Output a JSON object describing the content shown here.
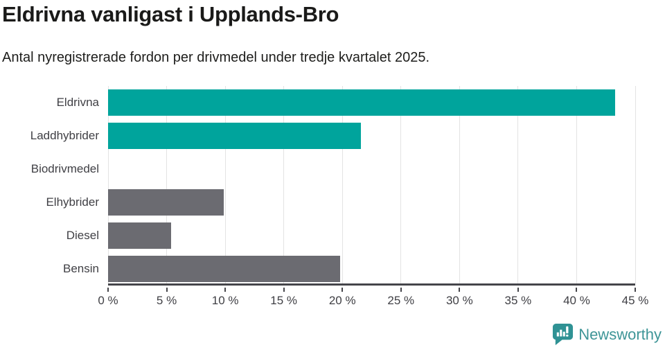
{
  "header": {
    "title": "Eldrivna vanligast i Upplands-Bro",
    "subtitle": "Antal nyregistrerade fordon per drivmedel under tredje kvartalet 2025."
  },
  "chart_data": {
    "type": "bar",
    "orientation": "horizontal",
    "title": "Eldrivna vanligast i Upplands-Bro",
    "subtitle": "Antal nyregistrerade fordon per drivmedel under tredje kvartalet 2025.",
    "categories": [
      "Eldrivna",
      "Laddhybrider",
      "Biodrivmedel",
      "Elhybrider",
      "Diesel",
      "Bensin"
    ],
    "values": [
      43.3,
      21.6,
      0,
      9.9,
      5.4,
      19.8
    ],
    "bar_colors": [
      "#00a49c",
      "#00a49c",
      "#00a49c",
      "#6b6b71",
      "#6b6b71",
      "#6b6b71"
    ],
    "xlabel": "",
    "ylabel": "",
    "xlim": [
      0,
      45
    ],
    "x_ticks": [
      0,
      5,
      10,
      15,
      20,
      25,
      30,
      35,
      40,
      45
    ],
    "x_tick_labels": [
      "0 %",
      "5 %",
      "10 %",
      "15 %",
      "20 %",
      "25 %",
      "30 %",
      "35 %",
      "40 %",
      "45 %"
    ],
    "grid": true,
    "legend": false
  },
  "colors": {
    "highlight": "#00a49c",
    "neutral": "#6b6b71",
    "axis": "#45454a",
    "gridline": "#e3e3e3",
    "label": "#3f3f44",
    "title": "#1a1a19"
  },
  "branding": {
    "logo_text": "Newsworthy",
    "logo_text_color": "#3e9597",
    "logo_icon": "newsworthy-chart-bubble-icon",
    "logo_icon_color": "#2f9294"
  }
}
